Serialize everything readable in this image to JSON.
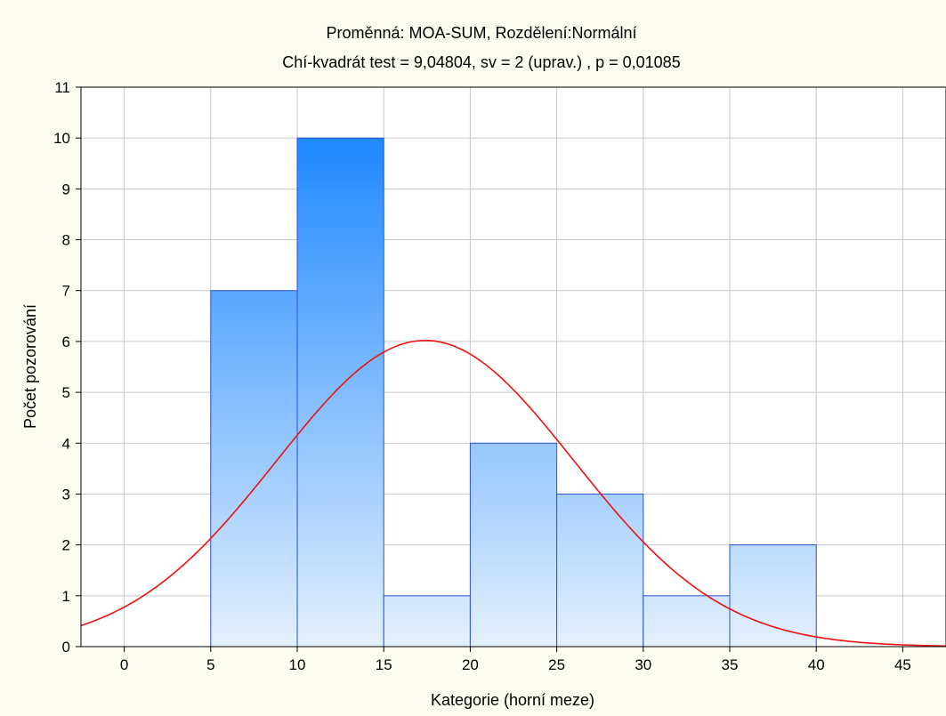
{
  "chart_data": {
    "type": "bar",
    "title": "Proměnná: MOA-SUM, Rozdělení:Normální",
    "subtitle": "Chí-kvadrát test = 9,04804, sv = 2 (uprav.) , p = 0,01085",
    "xlabel": "Kategorie (horní meze)",
    "ylabel": "Počet pozorování",
    "xlim": [
      -2.5,
      47.5
    ],
    "ylim": [
      0,
      11
    ],
    "grid": true,
    "x_ticks": [
      "0",
      "5",
      "10",
      "15",
      "20",
      "25",
      "30",
      "35",
      "40",
      "45"
    ],
    "y_ticks": [
      "0",
      "1",
      "2",
      "3",
      "4",
      "5",
      "6",
      "7",
      "8",
      "9",
      "10",
      "11"
    ],
    "bins": [
      {
        "from": 5,
        "to": 10,
        "value": 7
      },
      {
        "from": 10,
        "to": 15,
        "value": 10
      },
      {
        "from": 15,
        "to": 20,
        "value": 1
      },
      {
        "from": 20,
        "to": 25,
        "value": 4
      },
      {
        "from": 25,
        "to": 30,
        "value": 3
      },
      {
        "from": 30,
        "to": 35,
        "value": 1
      },
      {
        "from": 35,
        "to": 40,
        "value": 2
      }
    ],
    "normal_curve": {
      "mean": 17.4,
      "sd": 8.6,
      "peak": 6.02
    },
    "colors": {
      "bar_top": "#1e88ff",
      "bar_bottom": "#e4f0fd",
      "bar_stroke": "#2a55cc",
      "curve": "#ee1111",
      "grid": "#c8c8c8"
    }
  }
}
